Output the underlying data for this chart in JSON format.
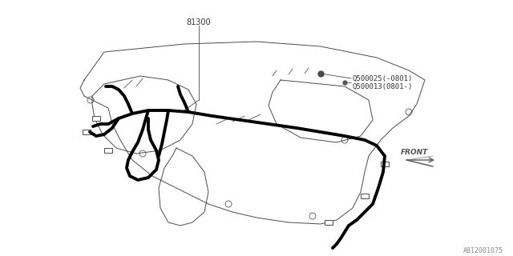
{
  "bg_color": "#ffffff",
  "line_color": "#000000",
  "thin_line_color": "#4a4a4a",
  "harness_color": "#000000",
  "label_81300": "81300",
  "label_part1": "Q500025(-0801)",
  "label_part2": "Q500013(0801-)",
  "label_front": "FRONT",
  "label_diagram_id": "A812001075",
  "arrow_color": "#555555",
  "font_size_labels": 7,
  "font_size_small": 6.5,
  "font_size_id": 6
}
